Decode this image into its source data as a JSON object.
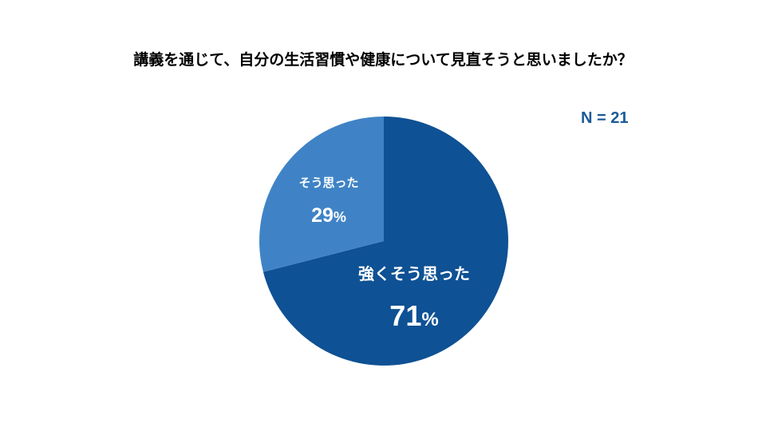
{
  "title": "講義を通じて、自分の生活習慣や健康について見直そうと思いましたか？",
  "sample_size": "N = 21",
  "colors": {
    "strongly_agree": "#0e5194",
    "agree": "#3f83c6",
    "text_accent": "#1b5a9a"
  },
  "chart_data": {
    "type": "pie",
    "title": "講義を通じて、自分の生活習慣や健康について見直そうと思いましたか？",
    "annotation": "N = 21",
    "slices": [
      {
        "label": "強くそう思った",
        "value": 71,
        "value_text": "71",
        "unit": "%",
        "color": "#0e5194"
      },
      {
        "label": "そう思った",
        "value": 29,
        "value_text": "29",
        "unit": "%",
        "color": "#3f83c6"
      }
    ],
    "start_angle": "12 o'clock",
    "direction": "clockwise",
    "legend": "none (labels on slices)"
  }
}
